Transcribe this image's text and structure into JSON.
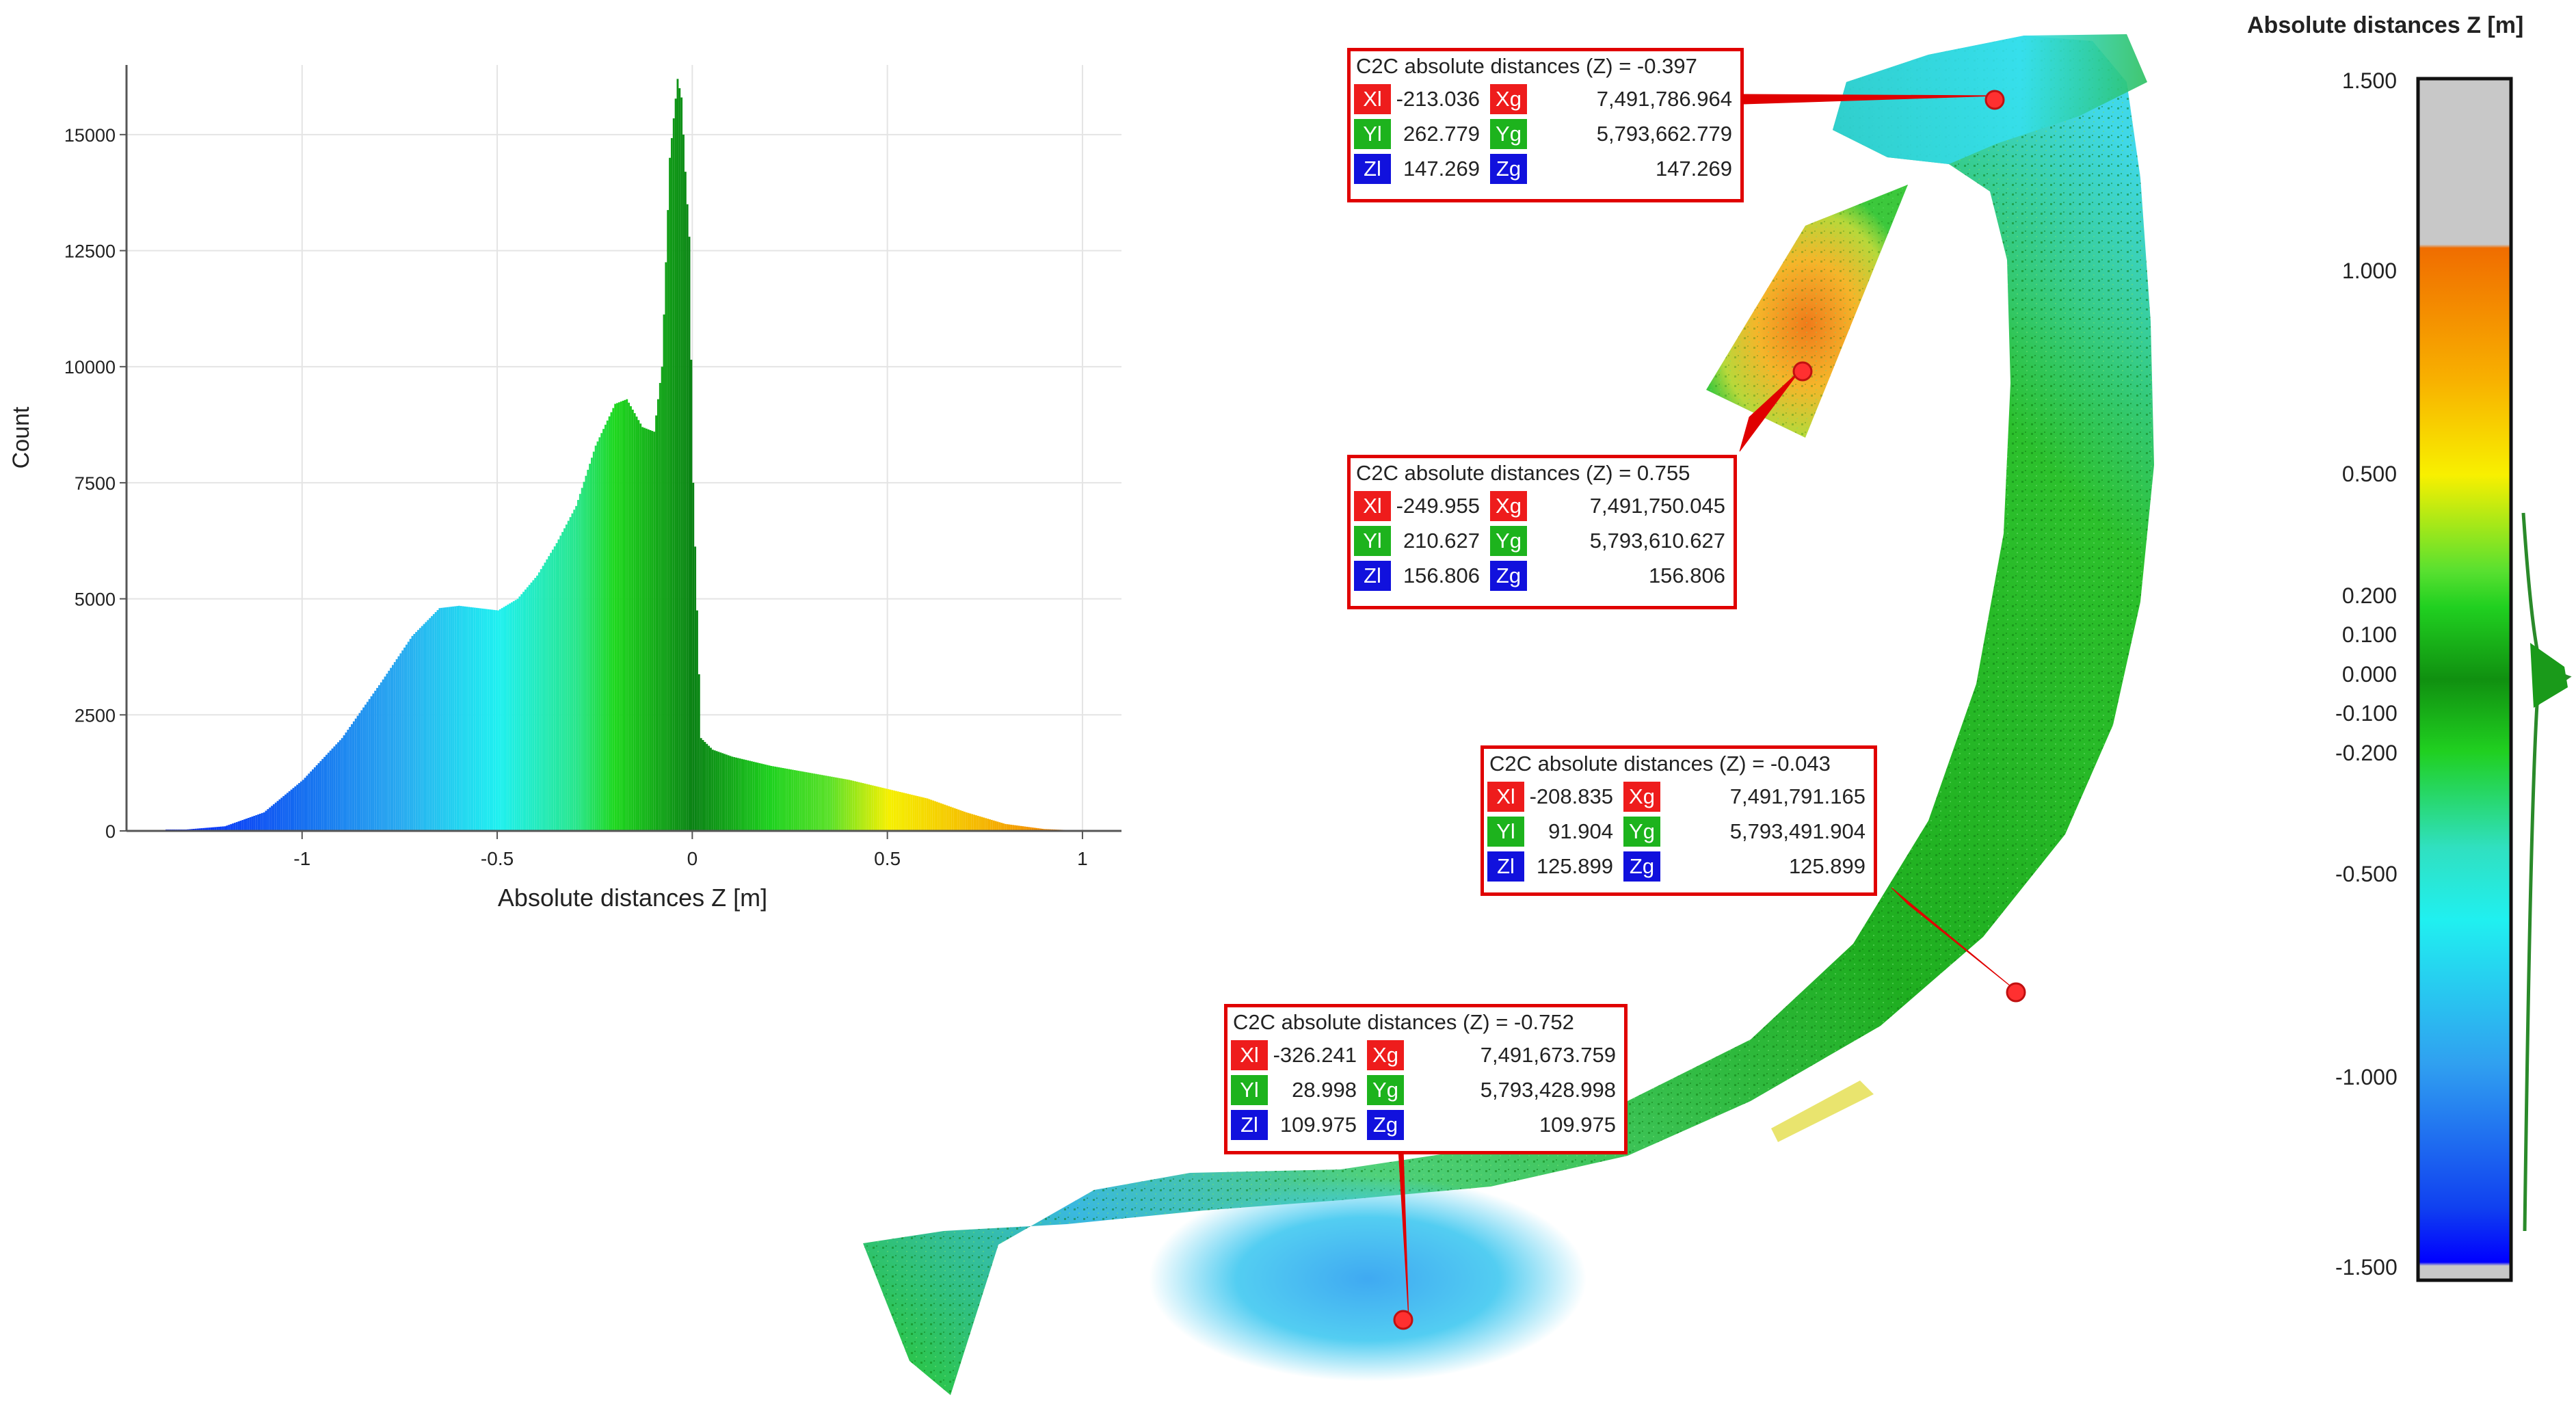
{
  "histogram": {
    "chart_data": {
      "type": "bar",
      "title": "",
      "xlabel": "Absolute distances Z [m]",
      "ylabel": "Count",
      "xlim": [
        -1.45,
        1.1
      ],
      "ylim": [
        0,
        16500
      ],
      "xticks": [
        "-1",
        "-0.5",
        "0",
        "0.5",
        "1"
      ],
      "xtick_values": [
        -1,
        -0.5,
        0,
        0.5,
        1
      ],
      "yticks": [
        "0",
        "2500",
        "5000",
        "7500",
        "10000",
        "12500",
        "15000"
      ],
      "ytick_values": [
        0,
        2500,
        5000,
        7500,
        10000,
        12500,
        15000
      ],
      "grid": true,
      "x": [
        -1.3,
        -1.2,
        -1.1,
        -1.0,
        -0.9,
        -0.8,
        -0.72,
        -0.65,
        -0.6,
        -0.55,
        -0.5,
        -0.45,
        -0.4,
        -0.35,
        -0.3,
        -0.25,
        -0.2,
        -0.17,
        -0.13,
        -0.1,
        -0.08,
        -0.06,
        -0.04,
        -0.03,
        -0.02,
        -0.01,
        0.0,
        0.02,
        0.05,
        0.1,
        0.15,
        0.2,
        0.3,
        0.4,
        0.5,
        0.6,
        0.7,
        0.8,
        0.9,
        1.0
      ],
      "y": [
        30,
        100,
        400,
        1100,
        2000,
        3200,
        4200,
        4800,
        4850,
        4800,
        4750,
        5000,
        5500,
        6200,
        7000,
        8300,
        9200,
        9300,
        8700,
        8600,
        10000,
        14500,
        16200,
        15800,
        14200,
        12800,
        7500,
        2000,
        1750,
        1600,
        1500,
        1400,
        1250,
        1100,
        900,
        700,
        400,
        150,
        40,
        5
      ]
    }
  },
  "labels": [
    {
      "title": "C2C absolute distances (Z) = -0.397",
      "xl": "-213.036",
      "xg": "7,491,786.964",
      "yl": "262.779",
      "yg": "5,793,662.779",
      "zl": "147.269",
      "zg": "147.269"
    },
    {
      "title": "C2C absolute distances (Z) = 0.755",
      "xl": "-249.955",
      "xg": "7,491,750.045",
      "yl": "210.627",
      "yg": "5,793,610.627",
      "zl": "156.806",
      "zg": "156.806"
    },
    {
      "title": "C2C absolute distances (Z) = -0.043",
      "xl": "-208.835",
      "xg": "7,491,791.165",
      "yl": "91.904",
      "yg": "5,793,491.904",
      "zl": "125.899",
      "zg": "125.899"
    },
    {
      "title": "C2C absolute distances (Z) = -0.752",
      "xl": "-326.241",
      "xg": "7,491,673.759",
      "yl": "28.998",
      "yg": "5,793,428.998",
      "zl": "109.975",
      "zg": "109.975"
    }
  ],
  "tag_text": {
    "xl": "Xl",
    "xg": "Xg",
    "yl": "Yl",
    "yg": "Yg",
    "zl": "Zl",
    "zg": "Zg"
  },
  "scale": {
    "title": "Absolute distances Z [m]",
    "ticks": [
      "1.500",
      "1.000",
      "0.500",
      "0.200",
      "0.100",
      "0.000",
      "-0.100",
      "-0.200",
      "-0.500",
      "-1.000",
      "-1.500"
    ],
    "tick_values": [
      1.5,
      1.0,
      0.5,
      0.2,
      0.1,
      0.0,
      -0.1,
      -0.2,
      -0.5,
      -1.0,
      -1.5
    ]
  },
  "colors": {
    "red": "#e00000",
    "grey": "#c8c8c8"
  }
}
